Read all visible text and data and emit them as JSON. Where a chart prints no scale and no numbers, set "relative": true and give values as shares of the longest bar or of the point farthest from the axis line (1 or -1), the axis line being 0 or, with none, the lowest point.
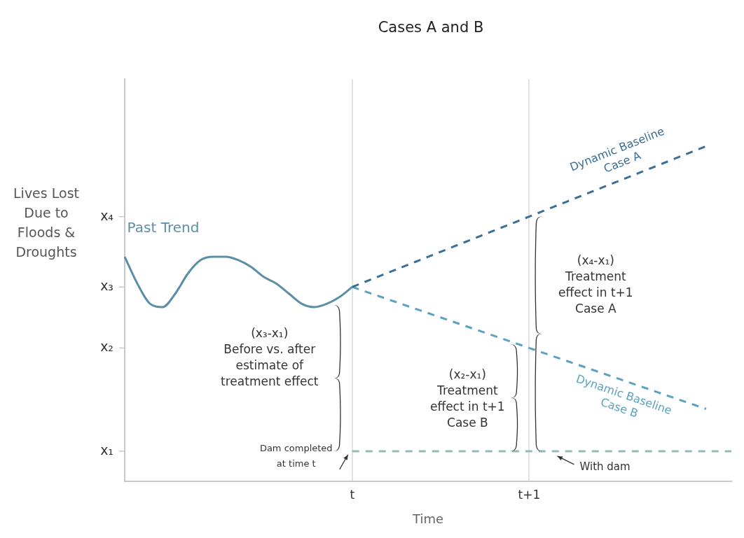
{
  "chart_data": {
    "type": "line",
    "title": "Cases A and B",
    "xlabel": "Time",
    "ylabel": "Lives Lost Due to Floods & Droughts",
    "relative": true,
    "categories": [
      null,
      null,
      null,
      null,
      null,
      null,
      null,
      null,
      null,
      null,
      null,
      null,
      null,
      null,
      null,
      null,
      null,
      null,
      "t",
      null,
      null,
      null,
      null,
      null,
      null,
      null,
      null,
      null,
      null,
      null,
      null,
      null,
      "t+1",
      null,
      null,
      null,
      null,
      null,
      null,
      null,
      null,
      null,
      null,
      null,
      null,
      null,
      null,
      null,
      null
    ],
    "grid": "x",
    "legend": false,
    "marker": "none",
    "series": [
      {
        "name": "Past Trend",
        "color": "#5a8fa6",
        "line_style": "solid",
        "values": [
          0.67,
          0.59,
          0.53,
          0.52,
          0.56,
          0.62,
          0.66,
          0.67,
          0.67,
          0.66,
          0.64,
          0.61,
          0.59,
          0.56,
          0.53,
          0.52,
          0.53,
          0.55,
          0.58,
          null,
          null,
          null,
          null,
          null,
          null,
          null,
          null,
          null,
          null,
          null,
          null,
          null,
          null,
          null,
          null,
          null,
          null,
          null,
          null,
          null,
          null,
          null,
          null,
          null,
          null,
          null,
          null,
          null,
          null
        ]
      },
      {
        "name": "Dynamic Baseline Case A",
        "color": "#3a6f98",
        "line_style": "dashed",
        "values": [
          null,
          null,
          null,
          null,
          null,
          null,
          null,
          null,
          null,
          null,
          null,
          null,
          null,
          null,
          null,
          null,
          null,
          null,
          0.58,
          0.595,
          0.61,
          0.625,
          0.64,
          0.655,
          0.67,
          0.685,
          0.7,
          0.715,
          0.73,
          0.745,
          0.76,
          0.775,
          0.79,
          0.805,
          0.82,
          0.835,
          0.85,
          0.865,
          0.88,
          0.895,
          0.91,
          0.925,
          0.94,
          0.955,
          0.97,
          0.985,
          1.0,
          null,
          null
        ]
      },
      {
        "name": "Dynamic Baseline Case B",
        "color": "#5aa2bf",
        "line_style": "dashed",
        "values": [
          null,
          null,
          null,
          null,
          null,
          null,
          null,
          null,
          null,
          null,
          null,
          null,
          null,
          null,
          null,
          null,
          null,
          null,
          0.58,
          0.567,
          0.554,
          0.541,
          0.528,
          0.515,
          0.502,
          0.489,
          0.476,
          0.463,
          0.45,
          0.437,
          0.424,
          0.411,
          0.398,
          0.385,
          0.372,
          0.359,
          0.346,
          0.333,
          0.32,
          0.307,
          0.294,
          0.281,
          0.268,
          0.255,
          0.242,
          0.229,
          0.216,
          null,
          null
        ]
      },
      {
        "name": "With dam",
        "color": "#94b9b9",
        "line_style": "dashed",
        "values": [
          null,
          null,
          null,
          null,
          null,
          null,
          null,
          null,
          null,
          null,
          null,
          null,
          null,
          null,
          null,
          null,
          null,
          null,
          0.09,
          0.09,
          0.09,
          0.09,
          0.09,
          0.09,
          0.09,
          0.09,
          0.09,
          0.09,
          0.09,
          0.09,
          0.09,
          0.09,
          0.09,
          0.09,
          0.09,
          0.09,
          0.09,
          0.09,
          0.09,
          0.09,
          0.09,
          0.09,
          0.09,
          0.09,
          0.09,
          0.09,
          0.09,
          0.09,
          0.09
        ]
      }
    ],
    "annotations": [
      "x₁",
      "x₂",
      "x₃",
      "x₄",
      "(x₃-x₁)\nBefore vs. after\nestimate of\ntreatment effect",
      "(x₂-x₁)\nTreatment\neffect in t+1\nCase B",
      "(x₄-x₁)\nTreatment\neffect in t+1\nCase A",
      "Dam completed\nat time t"
    ]
  }
}
